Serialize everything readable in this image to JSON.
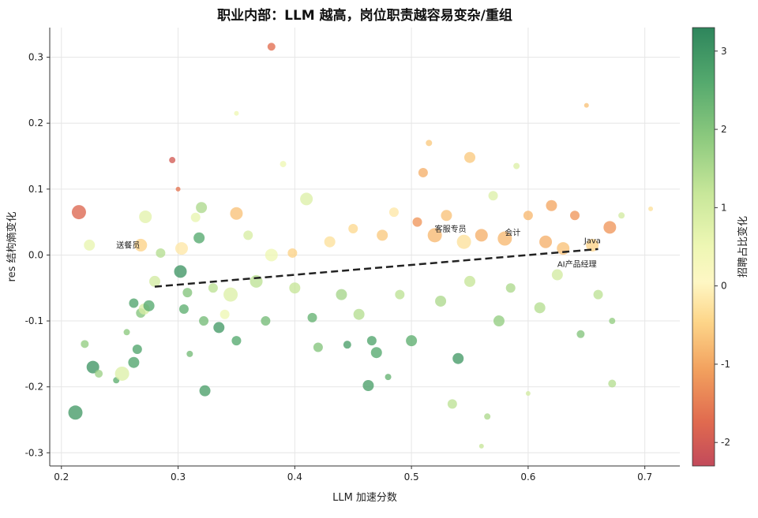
{
  "chart_data": {
    "type": "scatter",
    "title": "职业内部：LLM 越高，岗位职责越容易变杂/重组",
    "xlabel": "LLM 加速分数",
    "ylabel": "res 结构熵变化",
    "colorbar_label": "招聘占比变化",
    "xlim": [
      0.19,
      0.73
    ],
    "ylim": [
      -0.32,
      0.345
    ],
    "xticks": [
      "0.2",
      "0.3",
      "0.4",
      "0.5",
      "0.6",
      "0.7"
    ],
    "yticks": [
      "-0.3",
      "-0.2",
      "-0.1",
      "0.0",
      "0.1",
      "0.2",
      "0.3"
    ],
    "colorbar_range": [
      -2.3,
      3.3
    ],
    "colorbar_ticks": [
      "-2",
      "-1",
      "0",
      "1",
      "2",
      "3"
    ],
    "colormap": "RdYlGn",
    "grid": true,
    "trend_line": {
      "x": [
        0.28,
        0.66
      ],
      "y": [
        -0.048,
        0.009
      ]
    },
    "annotations": [
      {
        "text": "送餐员",
        "x": 0.247,
        "y": 0.011
      },
      {
        "text": "客服专员",
        "x": 0.52,
        "y": 0.035
      },
      {
        "text": "会计",
        "x": 0.58,
        "y": 0.03
      },
      {
        "text": "Java",
        "x": 0.648,
        "y": 0.018
      },
      {
        "text": "AI产品经理",
        "x": 0.625,
        "y": -0.018
      }
    ],
    "points": [
      {
        "x": 0.212,
        "y": -0.239,
        "c": 2.9,
        "s": 9
      },
      {
        "x": 0.227,
        "y": -0.17,
        "c": 3.0,
        "s": 8
      },
      {
        "x": 0.215,
        "y": 0.065,
        "c": -1.8,
        "s": 9
      },
      {
        "x": 0.22,
        "y": -0.135,
        "c": 1.8,
        "s": 5
      },
      {
        "x": 0.224,
        "y": 0.015,
        "c": 0.6,
        "s": 7
      },
      {
        "x": 0.232,
        "y": -0.18,
        "c": 1.7,
        "s": 5
      },
      {
        "x": 0.247,
        "y": -0.19,
        "c": 2.5,
        "s": 4
      },
      {
        "x": 0.252,
        "y": -0.18,
        "c": 0.8,
        "s": 9
      },
      {
        "x": 0.256,
        "y": -0.117,
        "c": 1.9,
        "s": 4
      },
      {
        "x": 0.262,
        "y": -0.073,
        "c": 2.7,
        "s": 6
      },
      {
        "x": 0.262,
        "y": -0.163,
        "c": 2.7,
        "s": 7
      },
      {
        "x": 0.265,
        "y": -0.143,
        "c": 2.7,
        "s": 6
      },
      {
        "x": 0.268,
        "y": -0.088,
        "c": 2.0,
        "s": 6
      },
      {
        "x": 0.271,
        "y": -0.082,
        "c": 0.9,
        "s": 7
      },
      {
        "x": 0.272,
        "y": 0.058,
        "c": 0.7,
        "s": 8
      },
      {
        "x": 0.275,
        "y": -0.077,
        "c": 2.6,
        "s": 7
      },
      {
        "x": 0.268,
        "y": 0.015,
        "c": -0.5,
        "s": 8
      },
      {
        "x": 0.28,
        "y": -0.04,
        "c": 1.0,
        "s": 7
      },
      {
        "x": 0.285,
        "y": 0.003,
        "c": 1.4,
        "s": 6
      },
      {
        "x": 0.295,
        "y": 0.144,
        "c": -2.0,
        "s": 4
      },
      {
        "x": 0.3,
        "y": 0.1,
        "c": -1.6,
        "s": 3
      },
      {
        "x": 0.303,
        "y": 0.01,
        "c": -0.2,
        "s": 8
      },
      {
        "x": 0.302,
        "y": -0.025,
        "c": 3.0,
        "s": 8
      },
      {
        "x": 0.305,
        "y": -0.082,
        "c": 2.5,
        "s": 6
      },
      {
        "x": 0.308,
        "y": -0.057,
        "c": 2.0,
        "s": 6
      },
      {
        "x": 0.31,
        "y": -0.15,
        "c": 2.2,
        "s": 4
      },
      {
        "x": 0.315,
        "y": 0.057,
        "c": 0.6,
        "s": 6
      },
      {
        "x": 0.318,
        "y": 0.026,
        "c": 2.6,
        "s": 7
      },
      {
        "x": 0.32,
        "y": 0.072,
        "c": 1.5,
        "s": 7
      },
      {
        "x": 0.322,
        "y": -0.1,
        "c": 2.2,
        "s": 6
      },
      {
        "x": 0.323,
        "y": -0.206,
        "c": 2.8,
        "s": 7
      },
      {
        "x": 0.33,
        "y": -0.05,
        "c": 1.3,
        "s": 6
      },
      {
        "x": 0.335,
        "y": -0.11,
        "c": 2.9,
        "s": 7
      },
      {
        "x": 0.34,
        "y": -0.09,
        "c": 0.5,
        "s": 6
      },
      {
        "x": 0.345,
        "y": -0.06,
        "c": 0.8,
        "s": 9
      },
      {
        "x": 0.35,
        "y": 0.063,
        "c": -0.7,
        "s": 8
      },
      {
        "x": 0.35,
        "y": -0.13,
        "c": 2.6,
        "s": 6
      },
      {
        "x": 0.35,
        "y": 0.215,
        "c": 0.5,
        "s": 3
      },
      {
        "x": 0.36,
        "y": 0.03,
        "c": 0.9,
        "s": 6
      },
      {
        "x": 0.367,
        "y": -0.04,
        "c": 1.3,
        "s": 8
      },
      {
        "x": 0.375,
        "y": -0.1,
        "c": 2.2,
        "s": 6
      },
      {
        "x": 0.38,
        "y": 0.316,
        "c": -1.7,
        "s": 5
      },
      {
        "x": 0.38,
        "y": 0.0,
        "c": 0.5,
        "s": 8
      },
      {
        "x": 0.39,
        "y": 0.138,
        "c": 0.5,
        "s": 4
      },
      {
        "x": 0.398,
        "y": 0.003,
        "c": -0.5,
        "s": 6
      },
      {
        "x": 0.4,
        "y": -0.05,
        "c": 1.2,
        "s": 7
      },
      {
        "x": 0.41,
        "y": 0.085,
        "c": 0.8,
        "s": 8
      },
      {
        "x": 0.415,
        "y": -0.095,
        "c": 2.4,
        "s": 6
      },
      {
        "x": 0.42,
        "y": -0.14,
        "c": 2.0,
        "s": 6
      },
      {
        "x": 0.43,
        "y": 0.02,
        "c": -0.3,
        "s": 7
      },
      {
        "x": 0.44,
        "y": -0.06,
        "c": 1.6,
        "s": 7
      },
      {
        "x": 0.445,
        "y": -0.136,
        "c": 2.8,
        "s": 5
      },
      {
        "x": 0.45,
        "y": 0.04,
        "c": -0.4,
        "s": 6
      },
      {
        "x": 0.455,
        "y": -0.09,
        "c": 1.4,
        "s": 7
      },
      {
        "x": 0.463,
        "y": -0.198,
        "c": 2.8,
        "s": 7
      },
      {
        "x": 0.466,
        "y": -0.13,
        "c": 2.7,
        "s": 6
      },
      {
        "x": 0.47,
        "y": -0.148,
        "c": 2.6,
        "s": 7
      },
      {
        "x": 0.475,
        "y": 0.03,
        "c": -0.6,
        "s": 7
      },
      {
        "x": 0.48,
        "y": -0.185,
        "c": 2.4,
        "s": 4
      },
      {
        "x": 0.485,
        "y": 0.065,
        "c": -0.2,
        "s": 6
      },
      {
        "x": 0.49,
        "y": -0.06,
        "c": 1.3,
        "s": 6
      },
      {
        "x": 0.5,
        "y": -0.13,
        "c": 2.5,
        "s": 7
      },
      {
        "x": 0.505,
        "y": 0.05,
        "c": -1.2,
        "s": 6
      },
      {
        "x": 0.51,
        "y": 0.125,
        "c": -0.9,
        "s": 6
      },
      {
        "x": 0.515,
        "y": 0.17,
        "c": -0.6,
        "s": 4
      },
      {
        "x": 0.52,
        "y": 0.03,
        "c": -0.8,
        "s": 9
      },
      {
        "x": 0.525,
        "y": -0.07,
        "c": 1.5,
        "s": 7
      },
      {
        "x": 0.53,
        "y": 0.06,
        "c": -0.7,
        "s": 7
      },
      {
        "x": 0.535,
        "y": -0.226,
        "c": 1.3,
        "s": 6
      },
      {
        "x": 0.54,
        "y": -0.157,
        "c": 2.9,
        "s": 7
      },
      {
        "x": 0.545,
        "y": 0.02,
        "c": -0.3,
        "s": 9
      },
      {
        "x": 0.55,
        "y": 0.148,
        "c": -0.6,
        "s": 7
      },
      {
        "x": 0.55,
        "y": -0.04,
        "c": 1.2,
        "s": 7
      },
      {
        "x": 0.56,
        "y": 0.03,
        "c": -0.9,
        "s": 8
      },
      {
        "x": 0.56,
        "y": -0.29,
        "c": 1.2,
        "s": 3
      },
      {
        "x": 0.565,
        "y": -0.245,
        "c": 1.5,
        "s": 4
      },
      {
        "x": 0.57,
        "y": 0.09,
        "c": 0.8,
        "s": 6
      },
      {
        "x": 0.575,
        "y": -0.1,
        "c": 1.8,
        "s": 7
      },
      {
        "x": 0.58,
        "y": 0.025,
        "c": -0.8,
        "s": 9
      },
      {
        "x": 0.585,
        "y": -0.05,
        "c": 1.5,
        "s": 6
      },
      {
        "x": 0.59,
        "y": 0.135,
        "c": 0.8,
        "s": 4
      },
      {
        "x": 0.6,
        "y": 0.06,
        "c": -0.8,
        "s": 6
      },
      {
        "x": 0.6,
        "y": -0.21,
        "c": 1.0,
        "s": 3
      },
      {
        "x": 0.61,
        "y": -0.08,
        "c": 1.4,
        "s": 7
      },
      {
        "x": 0.615,
        "y": 0.02,
        "c": -0.9,
        "s": 8
      },
      {
        "x": 0.62,
        "y": 0.075,
        "c": -1.0,
        "s": 7
      },
      {
        "x": 0.625,
        "y": -0.03,
        "c": 1.0,
        "s": 7
      },
      {
        "x": 0.63,
        "y": 0.01,
        "c": -0.7,
        "s": 8
      },
      {
        "x": 0.64,
        "y": 0.06,
        "c": -1.2,
        "s": 6
      },
      {
        "x": 0.645,
        "y": -0.12,
        "c": 2.0,
        "s": 5
      },
      {
        "x": 0.65,
        "y": 0.227,
        "c": -0.7,
        "s": 3
      },
      {
        "x": 0.655,
        "y": 0.015,
        "c": -0.5,
        "s": 8
      },
      {
        "x": 0.66,
        "y": -0.06,
        "c": 1.3,
        "s": 6
      },
      {
        "x": 0.67,
        "y": 0.042,
        "c": -1.2,
        "s": 8
      },
      {
        "x": 0.672,
        "y": -0.1,
        "c": 1.8,
        "s": 4
      },
      {
        "x": 0.672,
        "y": -0.195,
        "c": 1.4,
        "s": 5
      },
      {
        "x": 0.68,
        "y": 0.06,
        "c": 1.0,
        "s": 4
      },
      {
        "x": 0.705,
        "y": 0.07,
        "c": -0.3,
        "s": 3
      }
    ]
  }
}
